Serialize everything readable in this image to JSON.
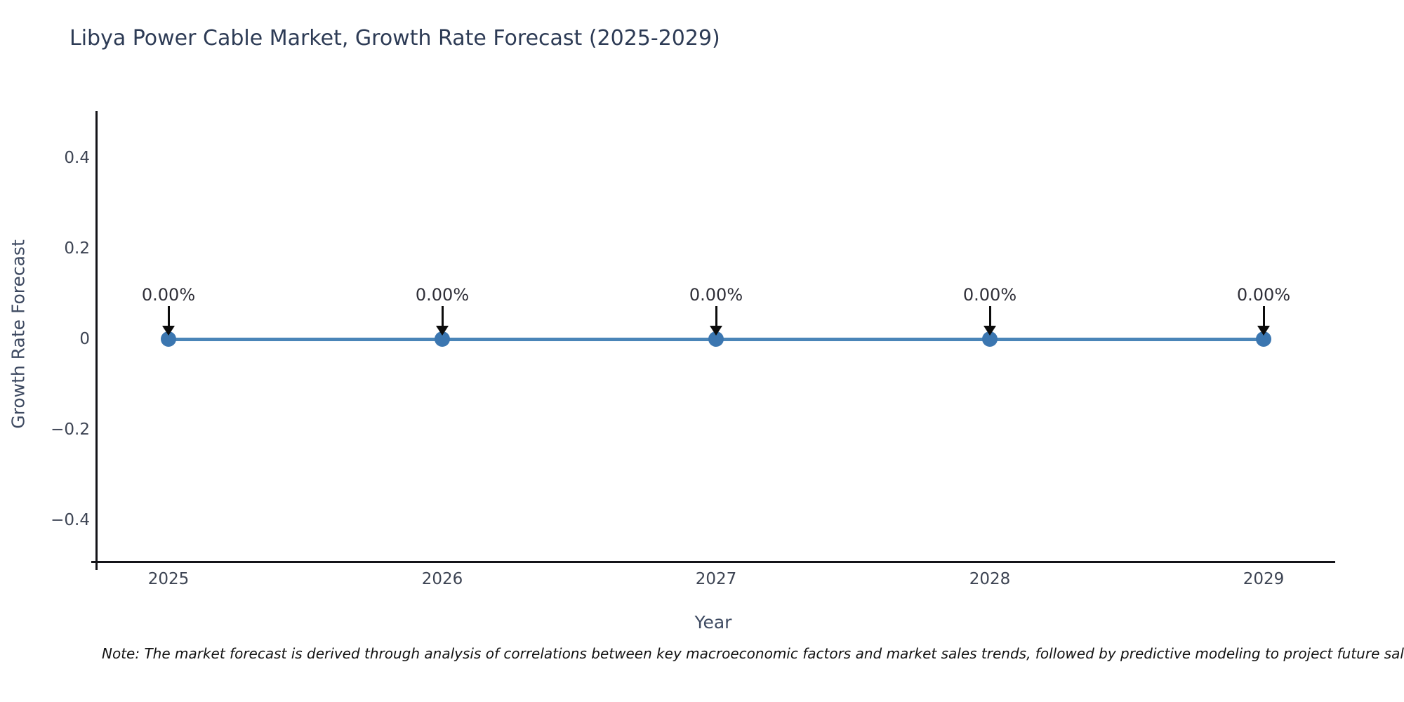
{
  "chart_data": {
    "type": "line",
    "title": "Libya Power Cable Market, Growth Rate Forecast (2025-2029)",
    "xlabel": "Year",
    "ylabel": "Growth Rate Forecast",
    "categories": [
      "2025",
      "2026",
      "2027",
      "2028",
      "2029"
    ],
    "series": [
      {
        "name": "Growth Rate Forecast",
        "values": [
          0,
          0,
          0,
          0,
          0
        ]
      }
    ],
    "point_labels": [
      "0.00%",
      "0.00%",
      "0.00%",
      "0.00%",
      "0.00%"
    ],
    "ylim": [
      -0.5,
      0.5
    ],
    "yticks": [
      {
        "value": 0.4,
        "label": "0.4"
      },
      {
        "value": 0.2,
        "label": "0.2"
      },
      {
        "value": 0,
        "label": "0"
      },
      {
        "value": -0.2,
        "label": "−0.2"
      },
      {
        "value": -0.4,
        "label": "−0.4"
      }
    ],
    "grid": false,
    "legend": false,
    "annotation_arrow": "down-arrow",
    "colors": {
      "line": "#4a85b8",
      "marker": "#3b76b0",
      "axis": "#141419",
      "title": "#2d3b55",
      "tick": "#3d4453",
      "axis_label": "#3e4a61",
      "point_label": "#2f2f38",
      "note": "#121212"
    },
    "note": "Note: The market forecast is derived through analysis of correlations between key macroeconomic factors and market sales trends, followed by predictive modeling to project future sales."
  }
}
